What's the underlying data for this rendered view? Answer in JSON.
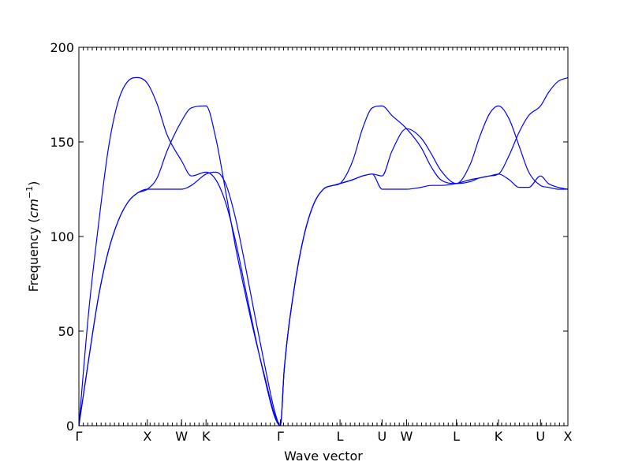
{
  "chart_data": {
    "type": "line",
    "xlabel": "Wave vector",
    "ylabel": "Frequency",
    "ylabel_unit": "cm",
    "ylabel_unit_exp": "−1",
    "ylim": [
      0,
      200
    ],
    "y_ticks": [
      "0",
      "50",
      "100",
      "150",
      "200"
    ],
    "xlim": [
      0,
      5.0
    ],
    "grid": false,
    "line_color": "#0000ff",
    "high_symmetry_points": [
      {
        "label": "Γ",
        "x": 0.0
      },
      {
        "label": "X",
        "x": 0.7
      },
      {
        "label": "W",
        "x": 1.05
      },
      {
        "label": "K",
        "x": 1.3
      },
      {
        "label": "Γ",
        "x": 2.06
      },
      {
        "label": "L",
        "x": 2.67
      },
      {
        "label": "U",
        "x": 3.1
      },
      {
        "label": "W",
        "x": 3.35
      },
      {
        "label": "L",
        "x": 3.86
      },
      {
        "label": "K",
        "x": 4.29
      },
      {
        "label": "U",
        "x": 4.72
      },
      {
        "label": "X",
        "x": 5.0
      }
    ],
    "series": [
      {
        "x": [
          0,
          0.1,
          0.2,
          0.3,
          0.4,
          0.5,
          0.6,
          0.7,
          0.8,
          0.9,
          1.05,
          1.15,
          1.3,
          1.4,
          1.5,
          1.6,
          1.7,
          1.8,
          1.9,
          2.0,
          2.06,
          2.1,
          2.2,
          2.3,
          2.4,
          2.5,
          2.6,
          2.67,
          2.8,
          2.9,
          3.0,
          3.1,
          3.2,
          3.35,
          3.5,
          3.6,
          3.7,
          3.86,
          4.0,
          4.1,
          4.2,
          4.29,
          4.4,
          4.5,
          4.6,
          4.72,
          4.8,
          4.9,
          5.0
        ],
        "y": [
          0,
          60,
          106,
          146,
          171,
          182,
          184,
          181,
          170,
          154,
          140,
          132,
          134,
          130,
          118,
          98,
          73,
          48,
          25,
          5,
          0,
          30,
          72,
          100,
          117,
          125,
          127,
          128,
          130,
          132,
          133,
          132,
          145,
          157,
          152,
          144,
          135,
          128,
          138,
          153,
          165,
          169,
          162,
          148,
          134,
          127,
          126,
          125,
          125
        ]
      },
      {
        "x": [
          0,
          0.1,
          0.2,
          0.3,
          0.4,
          0.5,
          0.6,
          0.7,
          0.8,
          0.9,
          1.05,
          1.15,
          1.3,
          1.4,
          1.5,
          1.6,
          1.7,
          1.8,
          1.9,
          2.0,
          2.06,
          2.1,
          2.2,
          2.3,
          2.4,
          2.5,
          2.6,
          2.67,
          2.8,
          2.9,
          3.0,
          3.1,
          3.2,
          3.35,
          3.5,
          3.6,
          3.7,
          3.86,
          4.0,
          4.1,
          4.2,
          4.29,
          4.4,
          4.5,
          4.6,
          4.72,
          4.8,
          4.9,
          5.0
        ],
        "y": [
          0,
          35,
          68,
          92,
          108,
          118,
          123,
          125,
          131,
          145,
          161,
          168,
          169,
          152,
          124,
          95,
          70,
          47,
          26,
          6,
          0,
          30,
          72,
          100,
          117,
          125,
          127,
          128,
          140,
          157,
          168,
          169,
          164,
          157,
          147,
          137,
          130,
          128,
          129,
          131,
          132,
          133,
          143,
          155,
          164,
          169,
          176,
          182,
          184
        ]
      },
      {
        "x": [
          0,
          0.1,
          0.2,
          0.3,
          0.4,
          0.5,
          0.6,
          0.7,
          0.8,
          0.9,
          1.05,
          1.15,
          1.3,
          1.4,
          1.5,
          1.6,
          1.7,
          1.8,
          1.9,
          2.0,
          2.06,
          2.1,
          2.2,
          2.3,
          2.4,
          2.5,
          2.6,
          2.67,
          2.8,
          2.9,
          3.0,
          3.1,
          3.2,
          3.35,
          3.5,
          3.6,
          3.7,
          3.86,
          4.0,
          4.1,
          4.2,
          4.29,
          4.4,
          4.5,
          4.6,
          4.72,
          4.8,
          4.9,
          5.0
        ],
        "y": [
          0,
          35,
          68,
          92,
          108,
          118,
          123,
          125,
          125,
          125,
          125,
          127,
          133,
          134,
          128,
          110,
          85,
          58,
          32,
          8,
          0,
          30,
          72,
          100,
          117,
          125,
          127,
          128,
          130,
          132,
          133,
          125,
          125,
          125,
          126,
          127,
          127,
          128,
          130,
          131,
          132,
          133,
          130,
          126,
          126,
          132,
          128,
          126,
          125
        ]
      }
    ]
  }
}
